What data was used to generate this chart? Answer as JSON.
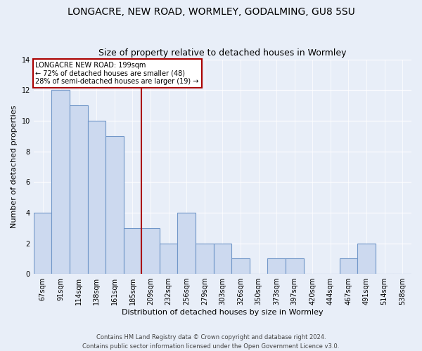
{
  "title": "LONGACRE, NEW ROAD, WORMLEY, GODALMING, GU8 5SU",
  "subtitle": "Size of property relative to detached houses in Wormley",
  "xlabel": "Distribution of detached houses by size in Wormley",
  "ylabel": "Number of detached properties",
  "bar_color": "#ccd9ef",
  "bar_edge_color": "#7096c8",
  "categories": [
    "67sqm",
    "91sqm",
    "114sqm",
    "138sqm",
    "161sqm",
    "185sqm",
    "209sqm",
    "232sqm",
    "256sqm",
    "279sqm",
    "303sqm",
    "326sqm",
    "350sqm",
    "373sqm",
    "397sqm",
    "420sqm",
    "444sqm",
    "467sqm",
    "491sqm",
    "514sqm",
    "538sqm"
  ],
  "values": [
    4,
    12,
    11,
    10,
    9,
    3,
    3,
    2,
    4,
    2,
    2,
    1,
    0,
    1,
    1,
    0,
    0,
    1,
    2,
    0,
    0
  ],
  "ylim": [
    0,
    14
  ],
  "yticks": [
    0,
    2,
    4,
    6,
    8,
    10,
    12,
    14
  ],
  "marker_after_index": 5,
  "marker_label": "LONGACRE NEW ROAD: 199sqm",
  "marker_pct_smaller": "72% of detached houses are smaller (48)",
  "marker_pct_larger": "28% of semi-detached houses are larger (19)",
  "marker_color": "#aa0000",
  "annotation_box_color": "#ffffff",
  "annotation_box_edge": "#aa0000",
  "footer_line1": "Contains HM Land Registry data © Crown copyright and database right 2024.",
  "footer_line2": "Contains public sector information licensed under the Open Government Licence v3.0.",
  "background_color": "#e8eef8",
  "grid_color": "#ffffff",
  "title_fontsize": 10,
  "subtitle_fontsize": 9,
  "ylabel_fontsize": 8,
  "xlabel_fontsize": 8,
  "tick_fontsize": 7,
  "footer_fontsize": 6
}
